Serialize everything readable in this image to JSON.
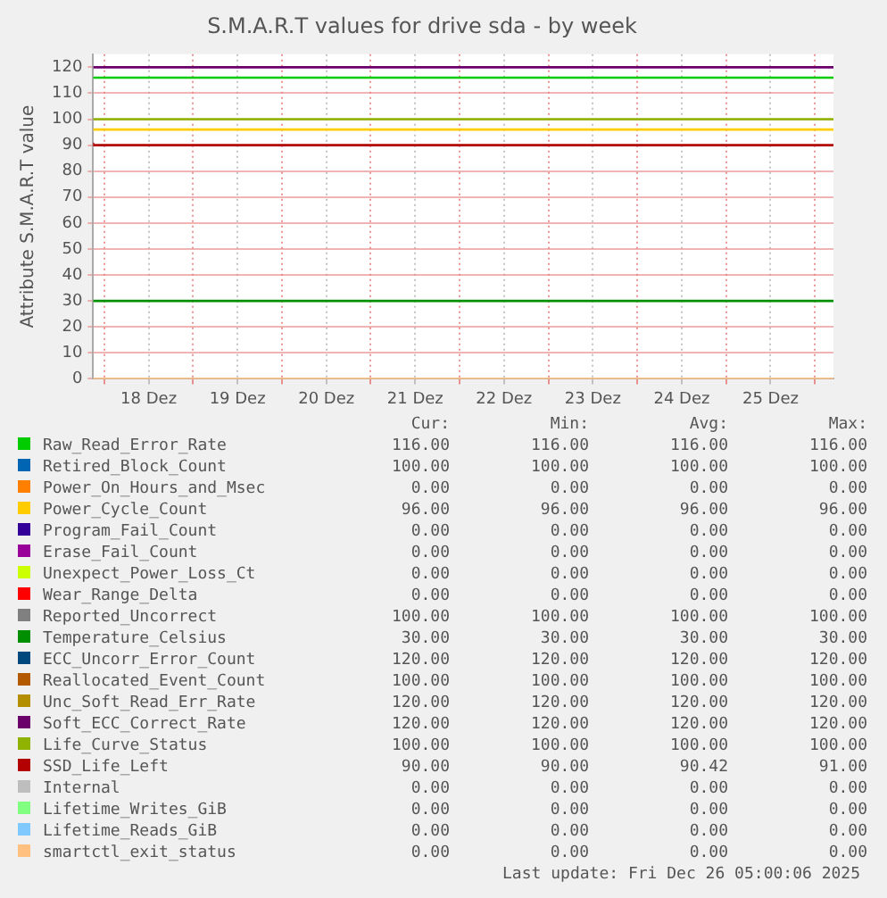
{
  "chart_data": {
    "type": "line",
    "title": "S.M.A.R.T values for drive sda - by week",
    "ylabel": "Attribute S.M.A.R.T value",
    "x": [
      "2025-12-17T21:00",
      "2025-12-21T09:00",
      "2025-12-26T05:00"
    ],
    "xlim": [
      "2025-12-17T21:00",
      "2025-12-26T05:00"
    ],
    "xticks": [
      {
        "value": "2025-12-18T00:00",
        "label": null
      },
      {
        "value": "2025-12-18T12:00",
        "label": "18 Dez"
      },
      {
        "value": "2025-12-19T00:00",
        "label": null
      },
      {
        "value": "2025-12-19T12:00",
        "label": "19 Dez"
      },
      {
        "value": "2025-12-20T00:00",
        "label": null
      },
      {
        "value": "2025-12-20T12:00",
        "label": "20 Dez"
      },
      {
        "value": "2025-12-21T00:00",
        "label": null
      },
      {
        "value": "2025-12-21T12:00",
        "label": "21 Dez"
      },
      {
        "value": "2025-12-22T00:00",
        "label": null
      },
      {
        "value": "2025-12-22T12:00",
        "label": "22 Dez"
      },
      {
        "value": "2025-12-23T00:00",
        "label": null
      },
      {
        "value": "2025-12-23T12:00",
        "label": "23 Dez"
      },
      {
        "value": "2025-12-24T00:00",
        "label": null
      },
      {
        "value": "2025-12-24T12:00",
        "label": "24 Dez"
      },
      {
        "value": "2025-12-25T00:00",
        "label": null
      },
      {
        "value": "2025-12-25T12:00",
        "label": "25 Dez"
      },
      {
        "value": "2025-12-26T00:00",
        "label": null
      }
    ],
    "ylim": [
      0,
      125
    ],
    "yticks": [
      0,
      10,
      20,
      30,
      40,
      50,
      60,
      70,
      80,
      90,
      100,
      110,
      120
    ],
    "grid": true,
    "legend": "bottom",
    "marker": "none",
    "series": [
      {
        "name": "Raw_Read_Error_Rate",
        "color": "#00cc00",
        "values": [
          116,
          116,
          116
        ]
      },
      {
        "name": "Retired_Block_Count",
        "color": "#0066b3",
        "values": [
          null,
          null,
          null
        ]
      },
      {
        "name": "Power_On_Hours_and_Msec",
        "color": "#ff8000",
        "values": [
          null,
          null,
          null
        ]
      },
      {
        "name": "Power_Cycle_Count",
        "color": "#ffcc00",
        "values": [
          96,
          96,
          96
        ]
      },
      {
        "name": "Program_Fail_Count",
        "color": "#330099",
        "values": [
          null,
          null,
          null
        ]
      },
      {
        "name": "Erase_Fail_Count",
        "color": "#990099",
        "values": [
          null,
          null,
          null
        ]
      },
      {
        "name": "Unexpect_Power_Loss_Ct",
        "color": "#ccff00",
        "values": [
          null,
          null,
          null
        ]
      },
      {
        "name": "Wear_Range_Delta",
        "color": "#ff0000",
        "values": [
          null,
          null,
          null
        ]
      },
      {
        "name": "Reported_Uncorrect",
        "color": "#808080",
        "values": [
          null,
          null,
          null
        ]
      },
      {
        "name": "Temperature_Celsius",
        "color": "#008f00",
        "values": [
          30,
          30,
          30
        ]
      },
      {
        "name": "ECC_Uncorr_Error_Count",
        "color": "#00487d",
        "values": [
          null,
          null,
          null
        ]
      },
      {
        "name": "Reallocated_Event_Count",
        "color": "#b35a00",
        "values": [
          null,
          null,
          null
        ]
      },
      {
        "name": "Unc_Soft_Read_Err_Rate",
        "color": "#b38f00",
        "values": [
          null,
          null,
          null
        ]
      },
      {
        "name": "Soft_ECC_Correct_Rate",
        "color": "#6b006b",
        "values": [
          120,
          120,
          120
        ]
      },
      {
        "name": "Life_Curve_Status",
        "color": "#8fb300",
        "values": [
          100,
          100,
          100
        ]
      },
      {
        "name": "SSD_Life_Left",
        "color": "#b30000",
        "type": "step",
        "values": [
          91,
          90,
          90
        ]
      },
      {
        "name": "Internal",
        "color": "#bebebe",
        "values": [
          null,
          null,
          null
        ]
      },
      {
        "name": "Lifetime_Writes_GiB",
        "color": "#80ff80",
        "values": [
          null,
          null,
          null
        ]
      },
      {
        "name": "Lifetime_Reads_GiB",
        "color": "#80c9ff",
        "values": [
          null,
          null,
          null
        ]
      },
      {
        "name": "smartctl_exit_status",
        "color": "#ffc080",
        "values": [
          0,
          0,
          0
        ]
      }
    ],
    "annotations": [
      "Cur:",
      "Min:",
      "Avg:",
      "Max:",
      "116.00",
      "116.00",
      "116.00",
      "116.00",
      "100.00",
      "100.00",
      "100.00",
      "100.00",
      "0.00",
      "0.00",
      "0.00",
      "0.00",
      "96.00",
      "96.00",
      "96.00",
      "96.00",
      "0.00",
      "0.00",
      "0.00",
      "0.00",
      "0.00",
      "0.00",
      "0.00",
      "0.00",
      "0.00",
      "0.00",
      "0.00",
      "0.00",
      "0.00",
      "0.00",
      "0.00",
      "0.00",
      "100.00",
      "100.00",
      "100.00",
      "100.00",
      "30.00",
      "30.00",
      "30.00",
      "30.00",
      "120.00",
      "120.00",
      "120.00",
      "120.00",
      "100.00",
      "100.00",
      "100.00",
      "100.00",
      "120.00",
      "120.00",
      "120.00",
      "120.00",
      "120.00",
      "120.00",
      "120.00",
      "120.00",
      "100.00",
      "100.00",
      "100.00",
      "100.00",
      "90.00",
      "90.00",
      "90.42",
      "91.00",
      "0.00",
      "0.00",
      "0.00",
      "0.00",
      "0.00",
      "0.00",
      "0.00",
      "0.00",
      "0.00",
      "0.00",
      "0.00",
      "0.00",
      "0.00",
      "0.00",
      "0.00",
      "0.00",
      "Last update: Fri Dec 26 05:00:06 2025"
    ]
  }
}
